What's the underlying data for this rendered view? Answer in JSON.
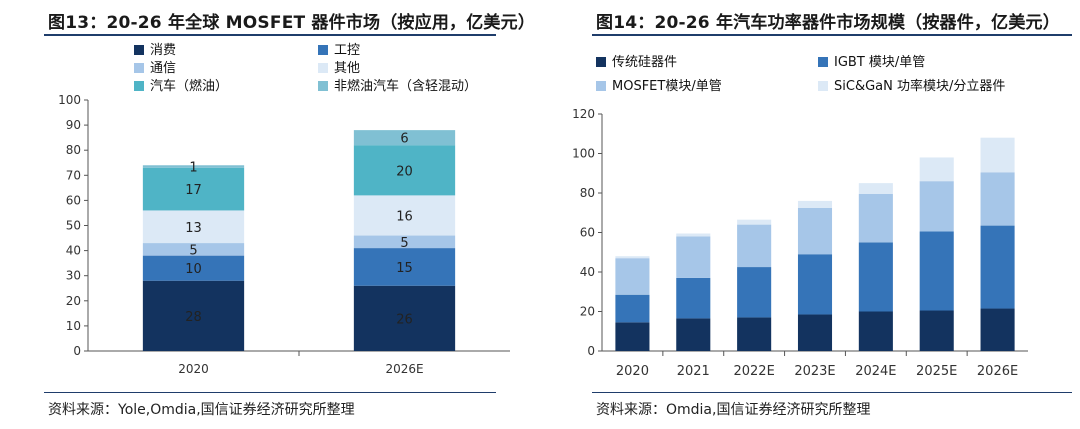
{
  "charts": [
    {
      "title": "图13：20-26 年全球 MOSFET 器件市场（按应用，亿美元）",
      "source": "资料来源：Yole,Omdia,国信证券经济研究所整理",
      "chart_data": {
        "type": "bar",
        "stacked": true,
        "categories": [
          "2020",
          "2026E"
        ],
        "ylim": [
          0,
          100
        ],
        "yticks": [
          0,
          10,
          20,
          30,
          40,
          50,
          60,
          70,
          80,
          90,
          100
        ],
        "legend_position": "top",
        "series": [
          {
            "name": "消费",
            "color": "#13335f",
            "values": [
              28,
              26
            ]
          },
          {
            "name": "工控",
            "color": "#3574b8",
            "values": [
              10,
              15
            ]
          },
          {
            "name": "通信",
            "color": "#a6c6e8",
            "values": [
              5,
              5
            ]
          },
          {
            "name": "其他",
            "color": "#dce9f6",
            "values": [
              13,
              16
            ]
          },
          {
            "name": "汽车（燃油）",
            "color": "#4fb4c6",
            "values": [
              17,
              20
            ]
          },
          {
            "name": "非燃油汽车（含轻混动）",
            "color": "#80c0d3",
            "values": [
              1,
              6
            ]
          }
        ]
      }
    },
    {
      "title": "图14：20-26 年汽车功率器件市场规模（按器件，亿美元）",
      "source": "资料来源：Omdia,国信证券经济研究所整理",
      "chart_data": {
        "type": "bar",
        "stacked": true,
        "categories": [
          "2020",
          "2021",
          "2022E",
          "2023E",
          "2024E",
          "2025E",
          "2026E"
        ],
        "ylim": [
          0,
          120
        ],
        "yticks": [
          0,
          20,
          40,
          60,
          80,
          100,
          120
        ],
        "legend_position": "top",
        "series": [
          {
            "name": "传统硅器件",
            "color": "#13335f",
            "values": [
              14.5,
              16.5,
              17,
              18.5,
              20,
              20.5,
              21.5
            ]
          },
          {
            "name": "IGBT 模块/单管",
            "color": "#3574b8",
            "values": [
              14,
              20.5,
              25.5,
              30.5,
              35,
              40,
              42
            ]
          },
          {
            "name": "MOSFET模块/单管",
            "color": "#a6c6e8",
            "values": [
              18.5,
              21,
              21.5,
              23.5,
              24.5,
              25.5,
              27
            ]
          },
          {
            "name": "SiC&GaN 功率模块/分立器件",
            "color": "#dce9f6",
            "values": [
              1,
              1.5,
              2.5,
              3.5,
              5.5,
              12,
              17.5
            ]
          }
        ]
      }
    }
  ]
}
